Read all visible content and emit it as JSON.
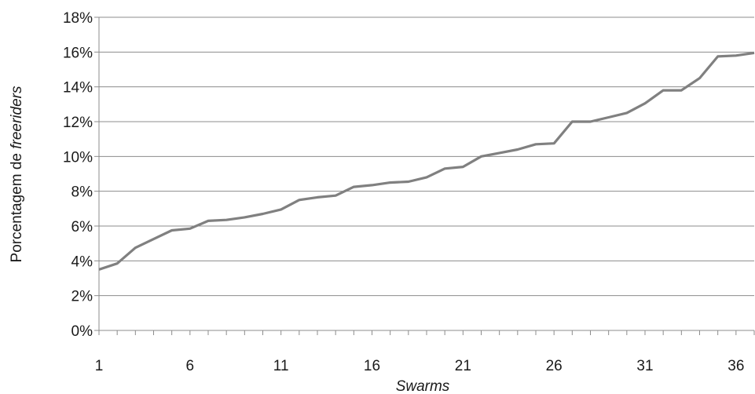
{
  "chart_data": {
    "type": "line",
    "title": "",
    "xlabel": "Swarms",
    "ylabel_prefix": "Porcentagem de ",
    "ylabel_emphasis": "freeriders",
    "x_tick_labels": [
      "1",
      "6",
      "11",
      "16",
      "21",
      "26",
      "31",
      "36"
    ],
    "y_tick_labels": [
      "0%",
      "2%",
      "4%",
      "6%",
      "8%",
      "10%",
      "12%",
      "14%",
      "16%",
      "18%"
    ],
    "xlim": [
      1,
      37
    ],
    "ylim": [
      0,
      18
    ],
    "grid": true,
    "legend": "none",
    "line_color": "#808080",
    "grid_color": "#8c8c8c",
    "series": [
      {
        "x": [
          1,
          2,
          3,
          4,
          5,
          6,
          7,
          8,
          9,
          10,
          11,
          12,
          13,
          14,
          15,
          16,
          17,
          18,
          19,
          20,
          21,
          22,
          23,
          24,
          25,
          26,
          27,
          28,
          29,
          30,
          31,
          32,
          33,
          34,
          35,
          36,
          37
        ],
        "values": [
          3.5,
          3.85,
          4.75,
          5.25,
          5.75,
          5.85,
          6.3,
          6.35,
          6.5,
          6.7,
          6.95,
          7.5,
          7.65,
          7.75,
          8.25,
          8.35,
          8.5,
          8.55,
          8.8,
          9.3,
          9.4,
          10.0,
          10.2,
          10.4,
          10.7,
          10.75,
          12.0,
          12.0,
          12.25,
          12.5,
          13.05,
          13.8,
          13.8,
          14.5,
          15.75,
          15.8,
          15.95
        ]
      }
    ]
  }
}
